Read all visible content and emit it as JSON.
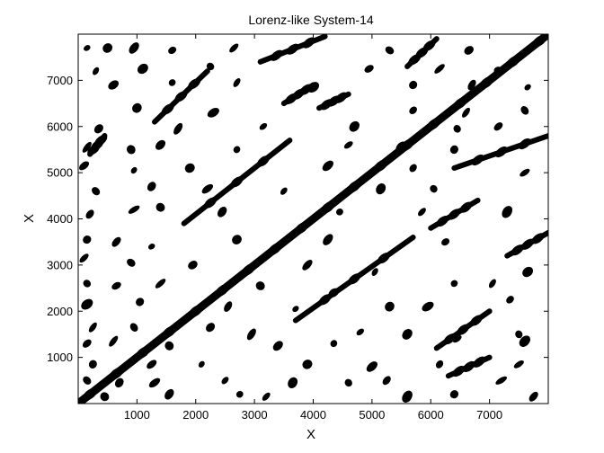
{
  "chart_data": {
    "type": "scatter",
    "plot_kind": "recurrence plot",
    "title": "Lorenz-like System-14",
    "xlabel": "X",
    "ylabel": "X",
    "xlim": [
      0,
      8000
    ],
    "ylim": [
      0,
      8000
    ],
    "x_ticks": [
      1000,
      2000,
      3000,
      4000,
      5000,
      6000,
      7000
    ],
    "x_tick_labels": [
      "1000",
      "2000",
      "3000",
      "4000",
      "5000",
      "6000",
      "7000"
    ],
    "y_ticks": [
      1000,
      2000,
      3000,
      4000,
      5000,
      6000,
      7000
    ],
    "y_tick_labels": [
      "1000",
      "2000",
      "3000",
      "4000",
      "5000",
      "6000",
      "7000"
    ],
    "grid": false,
    "legend": "none",
    "colors": {
      "recurrence": "#000000",
      "background": "#ffffff",
      "axes": "#000000"
    },
    "line_of_identity": [
      [
        0,
        0
      ],
      [
        8000,
        8000
      ]
    ],
    "diagonal_segments": [
      {
        "x": [
          1300,
          2200
        ],
        "y": [
          6100,
          7200
        ]
      },
      {
        "x": [
          1800,
          3600
        ],
        "y": [
          3900,
          5700
        ]
      },
      {
        "x": [
          3100,
          4200
        ],
        "y": [
          7400,
          7950
        ]
      },
      {
        "x": [
          5600,
          6100
        ],
        "y": [
          7300,
          7900
        ]
      },
      {
        "x": [
          3500,
          4000
        ],
        "y": [
          6500,
          6900
        ]
      },
      {
        "x": [
          4100,
          4600
        ],
        "y": [
          6400,
          6700
        ]
      },
      {
        "x": [
          6400,
          8000
        ],
        "y": [
          5100,
          5800
        ]
      },
      {
        "x": [
          6000,
          6800
        ],
        "y": [
          3800,
          4400
        ]
      },
      {
        "x": [
          7300,
          8000
        ],
        "y": [
          3200,
          3700
        ]
      },
      {
        "x": [
          3700,
          5700
        ],
        "y": [
          1800,
          3600
        ]
      },
      {
        "x": [
          6100,
          7000
        ],
        "y": [
          1200,
          2000
        ]
      },
      {
        "x": [
          6300,
          7000
        ],
        "y": [
          600,
          1000
        ]
      },
      {
        "x": [
          200,
          450
        ],
        "y": [
          5400,
          5800
        ]
      }
    ],
    "blobs": [
      [
        150,
        7700
      ],
      [
        500,
        7700
      ],
      [
        950,
        7700
      ],
      [
        1600,
        7650
      ],
      [
        2650,
        7700
      ],
      [
        5300,
        7650
      ],
      [
        6650,
        7650
      ],
      [
        7700,
        7700
      ],
      [
        300,
        7200
      ],
      [
        1100,
        7250
      ],
      [
        2250,
        7300
      ],
      [
        4950,
        7250
      ],
      [
        6150,
        7250
      ],
      [
        7150,
        7200
      ],
      [
        600,
        6900
      ],
      [
        1600,
        6950
      ],
      [
        2700,
        6950
      ],
      [
        4000,
        6850
      ],
      [
        5700,
        6900
      ],
      [
        6700,
        6900
      ],
      [
        7650,
        6850
      ],
      [
        1000,
        6400
      ],
      [
        2300,
        6300
      ],
      [
        5700,
        6350
      ],
      [
        6600,
        6300
      ],
      [
        7600,
        6350
      ],
      [
        350,
        5950
      ],
      [
        1700,
        5950
      ],
      [
        3150,
        6000
      ],
      [
        4700,
        6000
      ],
      [
        6450,
        5950
      ],
      [
        7150,
        6000
      ],
      [
        150,
        5550
      ],
      [
        900,
        5500
      ],
      [
        1400,
        5600
      ],
      [
        2700,
        5500
      ],
      [
        4600,
        5600
      ],
      [
        5500,
        5550
      ],
      [
        6400,
        5500
      ],
      [
        100,
        5150
      ],
      [
        950,
        5050
      ],
      [
        1900,
        5100
      ],
      [
        4250,
        5150
      ],
      [
        5700,
        5100
      ],
      [
        7600,
        5000
      ],
      [
        300,
        4600
      ],
      [
        1250,
        4700
      ],
      [
        2200,
        4650
      ],
      [
        3500,
        4600
      ],
      [
        5150,
        4650
      ],
      [
        6050,
        4650
      ],
      [
        200,
        4100
      ],
      [
        950,
        4200
      ],
      [
        1400,
        4250
      ],
      [
        2450,
        4150
      ],
      [
        4450,
        4150
      ],
      [
        5850,
        4150
      ],
      [
        7300,
        4150
      ],
      [
        150,
        3550
      ],
      [
        650,
        3500
      ],
      [
        1250,
        3400
      ],
      [
        2700,
        3550
      ],
      [
        4250,
        3550
      ],
      [
        6250,
        3500
      ],
      [
        100,
        3150
      ],
      [
        900,
        3050
      ],
      [
        1950,
        3000
      ],
      [
        3900,
        3000
      ],
      [
        5050,
        2850
      ],
      [
        7650,
        2850
      ],
      [
        150,
        2600
      ],
      [
        650,
        2550
      ],
      [
        1400,
        2600
      ],
      [
        3100,
        2550
      ],
      [
        4350,
        2400
      ],
      [
        6400,
        2600
      ],
      [
        7050,
        2600
      ],
      [
        150,
        2150
      ],
      [
        1050,
        2200
      ],
      [
        2550,
        2100
      ],
      [
        3700,
        2050
      ],
      [
        5300,
        2100
      ],
      [
        5950,
        2100
      ],
      [
        7350,
        2250
      ],
      [
        250,
        1650
      ],
      [
        950,
        1650
      ],
      [
        2250,
        1650
      ],
      [
        2950,
        1500
      ],
      [
        4800,
        1550
      ],
      [
        5600,
        1500
      ],
      [
        7500,
        1500
      ],
      [
        150,
        1300
      ],
      [
        600,
        1350
      ],
      [
        1550,
        1250
      ],
      [
        3400,
        1250
      ],
      [
        4350,
        1300
      ],
      [
        6450,
        1400
      ],
      [
        7600,
        1350
      ],
      [
        250,
        850
      ],
      [
        1250,
        850
      ],
      [
        2100,
        850
      ],
      [
        3900,
        850
      ],
      [
        5000,
        800
      ],
      [
        6150,
        850
      ],
      [
        7500,
        850
      ],
      [
        150,
        500
      ],
      [
        700,
        450
      ],
      [
        1300,
        450
      ],
      [
        2500,
        500
      ],
      [
        3650,
        450
      ],
      [
        4600,
        450
      ],
      [
        5250,
        500
      ],
      [
        7200,
        500
      ],
      [
        450,
        150
      ],
      [
        1550,
        200
      ],
      [
        2750,
        200
      ],
      [
        3200,
        150
      ],
      [
        5600,
        150
      ],
      [
        6400,
        200
      ],
      [
        7750,
        150
      ]
    ]
  }
}
